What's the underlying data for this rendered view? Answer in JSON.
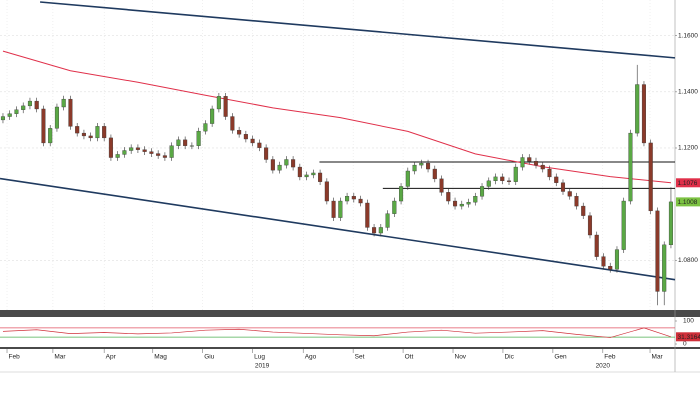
{
  "chart_data": [
    {
      "type": "candlestick",
      "open": [
        1.13,
        1.1312,
        1.1322,
        1.1336,
        1.135,
        1.1367,
        1.1339,
        1.1218,
        1.127,
        1.1346,
        1.1374,
        1.1277,
        1.1253,
        1.1243,
        1.1236,
        1.1277,
        1.1236,
        1.1166,
        1.1177,
        1.1191,
        1.1201,
        1.1194,
        1.1187,
        1.118,
        1.1173,
        1.1166,
        1.1208,
        1.1229,
        1.1208,
        1.1208,
        1.126,
        1.1287,
        1.1339,
        1.1384,
        1.1312,
        1.1263,
        1.1249,
        1.1232,
        1.1218,
        1.1201,
        1.1159,
        1.1121,
        1.1139,
        1.1159,
        1.1132,
        1.1097,
        1.1104,
        1.1111,
        1.108,
        1.1011,
        1.0952,
        1.1011,
        1.1028,
        1.1018,
        1.1004,
        1.0917,
        1.0897,
        1.0917,
        1.0966,
        1.1011,
        1.1063,
        1.1118,
        1.1139,
        1.1146,
        1.1125,
        1.109,
        1.1042,
        1.1011,
        1.0993,
        1.1,
        1.1007,
        1.1028,
        1.1063,
        1.1083,
        1.1097,
        1.1083,
        1.108,
        1.1132,
        1.1166,
        1.1153,
        1.1139,
        1.1125,
        1.1097,
        1.1076,
        1.1045,
        1.1028,
        1.0993,
        1.0959,
        1.089,
        1.0813,
        1.0779,
        1.0768,
        1.0838,
        1.1011,
        1.1253,
        1.1426,
        1.1218,
        1.0976,
        1.0689,
        1.0855
      ],
      "high": [
        1.1324,
        1.1334,
        1.1348,
        1.1362,
        1.1379,
        1.1379,
        1.1351,
        1.1282,
        1.1358,
        1.1386,
        1.1386,
        1.1289,
        1.1265,
        1.1255,
        1.1289,
        1.1289,
        1.1248,
        1.1189,
        1.1203,
        1.1213,
        1.1213,
        1.1206,
        1.1199,
        1.1192,
        1.1185,
        1.122,
        1.1241,
        1.1241,
        1.122,
        1.1272,
        1.1299,
        1.1351,
        1.1396,
        1.1396,
        1.1324,
        1.1275,
        1.1261,
        1.1244,
        1.123,
        1.1213,
        1.1171,
        1.1151,
        1.1171,
        1.1171,
        1.1144,
        1.1116,
        1.1123,
        1.1123,
        1.1092,
        1.1023,
        1.1023,
        1.104,
        1.104,
        1.103,
        1.1016,
        1.0929,
        1.0929,
        1.0978,
        1.1023,
        1.1075,
        1.113,
        1.1151,
        1.1158,
        1.1158,
        1.1137,
        1.1102,
        1.1054,
        1.1023,
        1.1012,
        1.1019,
        1.104,
        1.1075,
        1.1095,
        1.1109,
        1.1109,
        1.1095,
        1.1144,
        1.1178,
        1.1178,
        1.1165,
        1.1151,
        1.1137,
        1.1109,
        1.1088,
        1.1057,
        1.104,
        1.1005,
        1.0971,
        1.0902,
        1.0825,
        1.0791,
        1.085,
        1.1023,
        1.1265,
        1.1496,
        1.1438,
        1.123,
        1.0988,
        1.0867,
        1.106
      ],
      "low": [
        1.1288,
        1.13,
        1.131,
        1.1324,
        1.1338,
        1.1327,
        1.1206,
        1.1206,
        1.1258,
        1.1334,
        1.1265,
        1.1241,
        1.1231,
        1.1224,
        1.1224,
        1.1224,
        1.1154,
        1.1154,
        1.1165,
        1.1179,
        1.1182,
        1.1175,
        1.1168,
        1.1161,
        1.1154,
        1.1154,
        1.1196,
        1.1196,
        1.1196,
        1.1196,
        1.1248,
        1.1275,
        1.1327,
        1.13,
        1.1251,
        1.1237,
        1.122,
        1.1206,
        1.1189,
        1.1147,
        1.1109,
        1.1109,
        1.1127,
        1.112,
        1.1085,
        1.1085,
        1.1092,
        1.1068,
        1.0999,
        1.094,
        1.094,
        1.0999,
        1.1006,
        1.0992,
        1.0905,
        1.0885,
        1.0885,
        1.0905,
        1.0954,
        1.0999,
        1.1051,
        1.1106,
        1.1127,
        1.1113,
        1.1078,
        1.103,
        1.0999,
        1.0981,
        1.0981,
        1.0988,
        1.0995,
        1.1016,
        1.1051,
        1.1071,
        1.1071,
        1.1068,
        1.1068,
        1.112,
        1.1141,
        1.1127,
        1.1113,
        1.1085,
        1.1064,
        1.1033,
        1.1016,
        1.0981,
        1.0947,
        1.0878,
        1.0801,
        1.0767,
        1.0756,
        1.0756,
        1.0826,
        1.0999,
        1.1241,
        1.1206,
        1.0964,
        1.064,
        1.064,
        1.0843
      ],
      "close": [
        1.1312,
        1.1322,
        1.1336,
        1.135,
        1.1367,
        1.1339,
        1.1218,
        1.127,
        1.1346,
        1.1374,
        1.1277,
        1.1253,
        1.1243,
        1.1236,
        1.1277,
        1.1236,
        1.1166,
        1.1177,
        1.1191,
        1.1201,
        1.1194,
        1.1187,
        1.118,
        1.1173,
        1.1166,
        1.1208,
        1.1229,
        1.1208,
        1.1208,
        1.126,
        1.1287,
        1.1339,
        1.1384,
        1.1312,
        1.1263,
        1.1249,
        1.1232,
        1.1218,
        1.1201,
        1.1159,
        1.1121,
        1.1139,
        1.1159,
        1.1132,
        1.1097,
        1.1104,
        1.1111,
        1.108,
        1.1011,
        1.0952,
        1.1011,
        1.1028,
        1.1018,
        1.1004,
        1.0917,
        1.0897,
        1.0917,
        1.0966,
        1.1011,
        1.1063,
        1.1118,
        1.1139,
        1.1146,
        1.1125,
        1.109,
        1.1042,
        1.1011,
        1.0993,
        1.1,
        1.1007,
        1.1028,
        1.1063,
        1.1083,
        1.1097,
        1.1083,
        1.108,
        1.1132,
        1.1166,
        1.1153,
        1.1139,
        1.1125,
        1.1097,
        1.1076,
        1.1045,
        1.1028,
        1.0993,
        1.0959,
        1.089,
        1.0813,
        1.0779,
        1.0768,
        1.0838,
        1.1011,
        1.1253,
        1.1426,
        1.1218,
        1.0976,
        1.0689,
        1.0855,
        1.1008
      ],
      "colors": {
        "up": "#5aa845",
        "down": "#8b3a2a",
        "last": "#7cc242"
      },
      "xlim": [
        -0.44,
        99.6
      ],
      "ylim": [
        1.063,
        1.172
      ],
      "yticks": [
        {
          "value": 1.08,
          "label": "1.0800"
        },
        {
          "value": 1.12,
          "label": "1.1200"
        },
        {
          "value": 1.14,
          "label": "1.1400"
        },
        {
          "value": 1.16,
          "label": "1.1600"
        }
      ],
      "xticks": [
        {
          "value": 0.6,
          "label": "Feb"
        },
        {
          "value": 7.4,
          "label": "Mar"
        },
        {
          "value": 15,
          "label": "Apr"
        },
        {
          "value": 22.2,
          "label": "Mag"
        },
        {
          "value": 29.6,
          "label": "Giu"
        },
        {
          "value": 37,
          "label": "Lug"
        },
        {
          "value": 44.5,
          "label": "Ago"
        },
        {
          "value": 51.9,
          "label": "Set"
        },
        {
          "value": 59.3,
          "label": "Ott"
        },
        {
          "value": 66.7,
          "label": "Nov"
        },
        {
          "value": 74.1,
          "label": "Dic"
        },
        {
          "value": 81.5,
          "label": "Gen"
        },
        {
          "value": 88.9,
          "label": "Feb"
        },
        {
          "value": 95.9,
          "label": "Mar"
        }
      ],
      "year_labels": [
        {
          "value": 38.4,
          "label": "2019"
        },
        {
          "value": 88.9,
          "label": "2020"
        }
      ],
      "grid": true,
      "moving_average": {
        "color": "#e0304a",
        "x": [
          0,
          10,
          20,
          30,
          40,
          50,
          60,
          70,
          80,
          90,
          99
        ],
        "values": [
          1.1545,
          1.1475,
          1.1434,
          1.1388,
          1.1343,
          1.1308,
          1.1259,
          1.1179,
          1.1133,
          1.1098,
          1.1076
        ]
      },
      "trendlines": [
        {
          "color": "#1f3a5f",
          "x": [
            5.5,
            99.6
          ],
          "values": [
            1.172,
            1.1521
          ]
        },
        {
          "color": "#1f3a5f",
          "x": [
            -0.44,
            99.6
          ],
          "values": [
            1.1091,
            1.0731
          ]
        }
      ],
      "levels": [
        {
          "color": "#111111",
          "x": [
            46.9,
            99.6
          ],
          "values": [
            1.115,
            1.115
          ]
        },
        {
          "color": "#111111",
          "x": [
            56.3,
            99.6
          ],
          "values": [
            1.1056,
            1.1056
          ]
        }
      ]
    },
    {
      "type": "line",
      "color": "#d0303a",
      "x": [
        0,
        5,
        10,
        15,
        20,
        25,
        30,
        35,
        40,
        45,
        50,
        55,
        60,
        65,
        70,
        75,
        80,
        85,
        90,
        95,
        99
      ],
      "values": [
        55,
        62,
        45,
        50,
        44,
        48,
        60,
        64,
        52,
        46,
        40,
        36,
        52,
        60,
        47,
        52,
        58,
        42,
        28,
        70,
        31.3164
      ],
      "xlim": [
        -0.44,
        99.6
      ],
      "ylim": [
        0,
        100
      ],
      "yticks": [
        0,
        100
      ],
      "bands": [
        {
          "value": 70,
          "color": "#e05060"
        },
        {
          "value": 30,
          "color": "#4caf50"
        }
      ]
    }
  ]
}
